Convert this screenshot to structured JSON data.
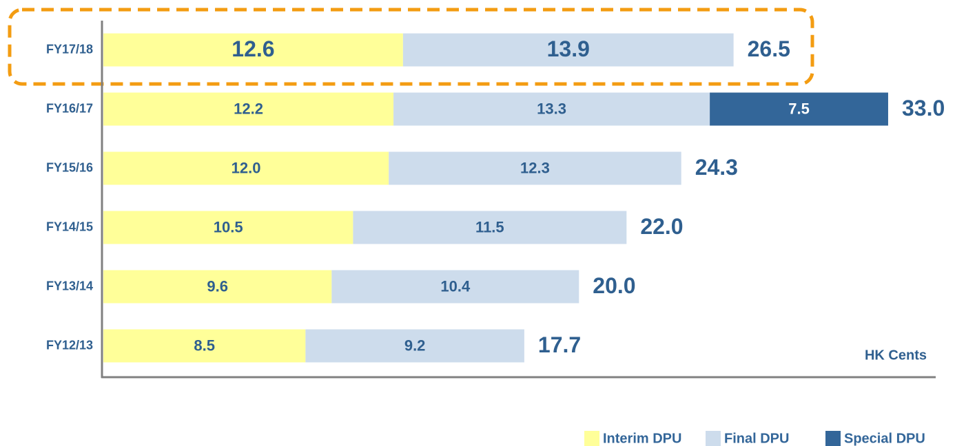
{
  "chart_data": {
    "type": "stacked_barh",
    "categories": [
      "FY17/18",
      "FY16/17",
      "FY15/16",
      "FY14/15",
      "FY13/14",
      "FY12/13"
    ],
    "series": [
      {
        "name": "Interim DPU",
        "color": "#ffff99",
        "values": [
          12.6,
          12.2,
          12.0,
          10.5,
          9.6,
          8.5
        ],
        "value_labels": [
          "12.6",
          "12.2",
          "12.0",
          "10.5",
          "9.6",
          "8.5"
        ]
      },
      {
        "name": "Final DPU",
        "color": "#cddcec",
        "values": [
          13.9,
          13.3,
          12.3,
          11.5,
          10.4,
          9.2
        ],
        "value_labels": [
          "13.9",
          "13.3",
          "12.3",
          "11.5",
          "10.4",
          "9.2"
        ]
      },
      {
        "name": "Special DPU",
        "color": "#336699",
        "values": [
          null,
          7.5,
          null,
          null,
          null,
          null
        ],
        "value_labels": [
          null,
          "7.5",
          null,
          null,
          null,
          null
        ]
      }
    ],
    "totals": {
      "values": [
        26.5,
        33.0,
        24.3,
        22.0,
        20.0,
        17.7
      ],
      "value_labels": [
        "26.5",
        "33.0",
        "24.3",
        "22.0",
        "20.0",
        "17.7"
      ]
    },
    "unit_label": "HK Cents",
    "xlim": [
      0,
      35
    ],
    "legend": "bottom-right"
  }
}
